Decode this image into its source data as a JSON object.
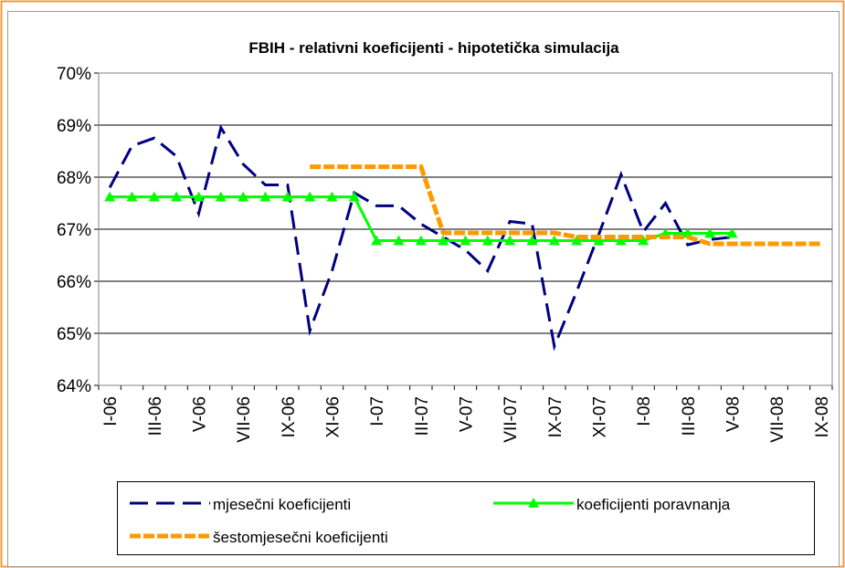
{
  "chart_data": {
    "type": "line",
    "title": "FBIH - relativni koeficijenti - hipotetička simulacija",
    "categories": [
      "I-06",
      null,
      "III-06",
      null,
      "V-06",
      null,
      "VII-06",
      null,
      "IX-06",
      null,
      "XI-06",
      null,
      "I-07",
      null,
      "III-07",
      null,
      "V-07",
      null,
      "VII-07",
      null,
      "IX-07",
      null,
      "XI-07",
      null,
      "I-08",
      null,
      "III-08",
      null,
      "V-08",
      null,
      "VII-08",
      null,
      "IX-08"
    ],
    "series": [
      {
        "name": "mjesečni koeficijenti",
        "color": "#000080",
        "style": "dashed",
        "values": [
          67.8,
          68.6,
          68.75,
          68.4,
          67.3,
          68.95,
          68.25,
          67.85,
          67.85,
          65.05,
          66.2,
          67.7,
          67.45,
          67.45,
          67.1,
          66.85,
          66.6,
          66.2,
          67.15,
          67.1,
          64.75,
          65.8,
          66.9,
          68.05,
          66.95,
          67.5,
          66.7,
          66.8,
          66.85,
          null,
          null,
          null,
          null
        ]
      },
      {
        "name": "koeficijenti poravnanja",
        "color": "#00ff00",
        "style": "solid",
        "marker": "triangle",
        "values": [
          67.62,
          67.62,
          67.62,
          67.62,
          67.62,
          67.62,
          67.62,
          67.62,
          67.62,
          67.62,
          67.62,
          67.62,
          66.78,
          66.78,
          66.78,
          66.78,
          66.78,
          66.78,
          66.78,
          66.78,
          66.78,
          66.78,
          66.78,
          66.78,
          66.78,
          66.92,
          66.92,
          66.92,
          66.92,
          null,
          null,
          null,
          null
        ]
      },
      {
        "name": "šestomjesečni koeficijenti",
        "color": "#ff9900",
        "style": "dotted",
        "values": [
          null,
          null,
          null,
          null,
          null,
          null,
          null,
          null,
          null,
          68.2,
          68.2,
          68.2,
          68.2,
          68.2,
          68.2,
          66.93,
          66.93,
          66.93,
          66.93,
          66.93,
          66.93,
          66.85,
          66.85,
          66.85,
          66.85,
          66.85,
          66.85,
          66.72,
          66.72,
          66.72,
          66.72,
          66.72,
          66.72
        ]
      }
    ],
    "ylim": [
      64,
      70
    ],
    "yticks": [
      {
        "value": 64,
        "label": "64%"
      },
      {
        "value": 65,
        "label": "65%"
      },
      {
        "value": 66,
        "label": "66%"
      },
      {
        "value": 67,
        "label": "67%"
      },
      {
        "value": 68,
        "label": "68%"
      },
      {
        "value": 69,
        "label": "69%"
      },
      {
        "value": 70,
        "label": "70%"
      }
    ],
    "grid": true,
    "legend": "bottom"
  }
}
